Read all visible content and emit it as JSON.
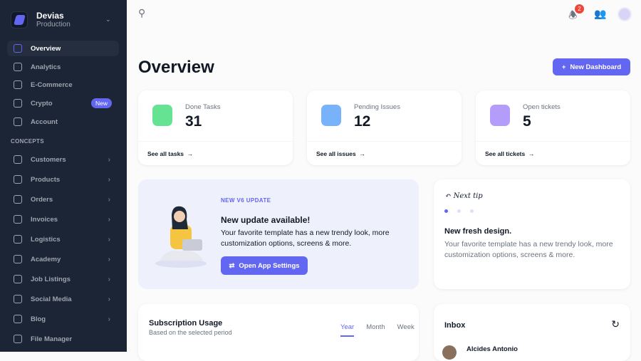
{
  "brand": {
    "name": "Devias",
    "env": "Production"
  },
  "sidebar": {
    "items": [
      {
        "label": "Overview",
        "active": true
      },
      {
        "label": "Analytics"
      },
      {
        "label": "E-Commerce"
      },
      {
        "label": "Crypto",
        "badge": "New"
      },
      {
        "label": "Account"
      }
    ],
    "section": "CONCEPTS",
    "concepts": [
      {
        "label": "Customers"
      },
      {
        "label": "Products"
      },
      {
        "label": "Orders"
      },
      {
        "label": "Invoices"
      },
      {
        "label": "Logistics"
      },
      {
        "label": "Academy"
      },
      {
        "label": "Job Listings"
      },
      {
        "label": "Social Media"
      },
      {
        "label": "Blog"
      },
      {
        "label": "File Manager"
      }
    ]
  },
  "topbar": {
    "notifications": "2"
  },
  "page": {
    "title": "Overview",
    "new_dashboard": "New Dashboard"
  },
  "stats": [
    {
      "label": "Done Tasks",
      "value": "31",
      "link": "See all tasks",
      "color": "#4ade80"
    },
    {
      "label": "Pending Issues",
      "value": "12",
      "link": "See all issues",
      "color": "#60a5fa"
    },
    {
      "label": "Open tickets",
      "value": "5",
      "link": "See all tickets",
      "color": "#a78bfa"
    }
  ],
  "banner": {
    "tag": "NEW V6 UPDATE",
    "title": "New update available!",
    "text": "Your favorite template has a new trendy look, more customization options, screens & more.",
    "button": "Open App Settings"
  },
  "tip": {
    "next": "Next tip",
    "title": "New fresh design.",
    "text": "Your favorite template has a new trendy look, more customization options, screens & more."
  },
  "subscription": {
    "title": "Subscription Usage",
    "subtitle": "Based on the selected period",
    "tabs": [
      "Year",
      "Month",
      "Week"
    ]
  },
  "inbox": {
    "title": "Inbox",
    "first_sender": "Alcides Antonio"
  },
  "colors": {
    "accent": "#6366f1",
    "sidebar": "#1c2536"
  }
}
